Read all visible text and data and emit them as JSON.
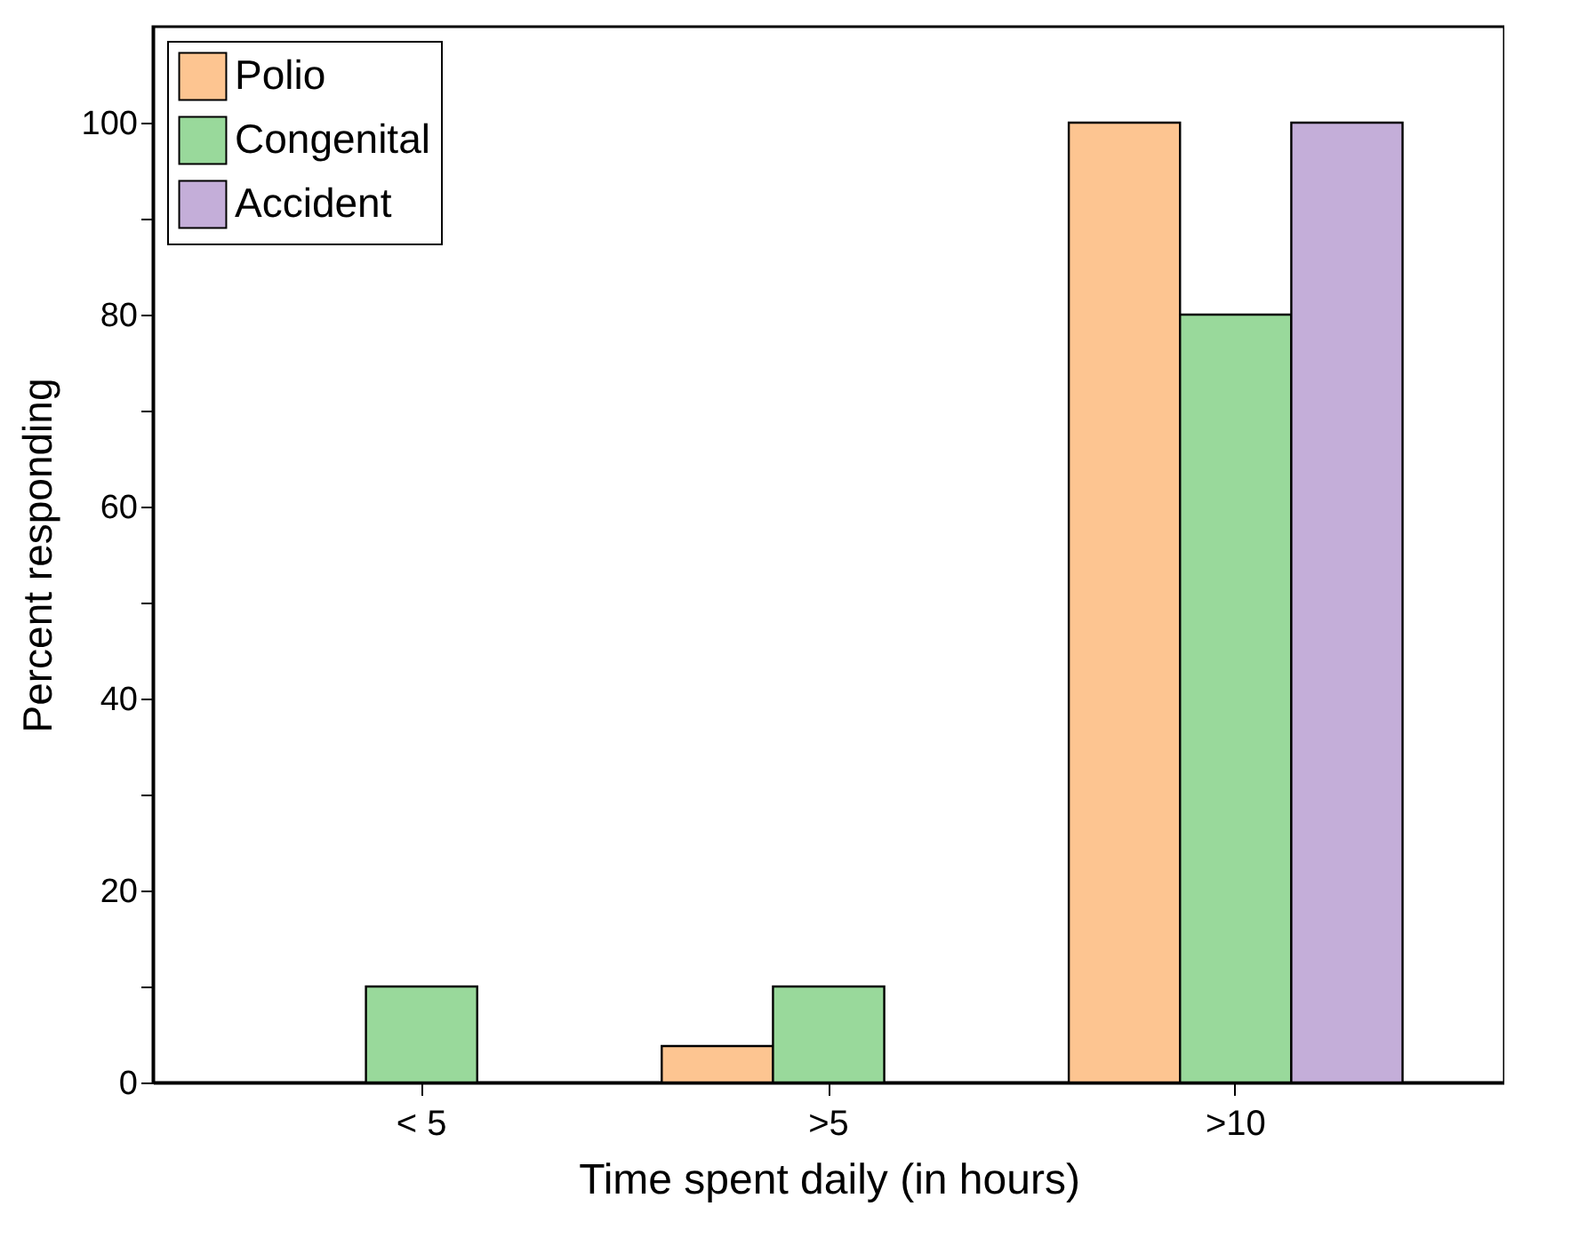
{
  "chart_data": {
    "type": "bar",
    "xlabel": "Time spent daily (in hours)",
    "ylabel": "Percent responding",
    "categories": [
      "< 5",
      ">5",
      ">10"
    ],
    "series": [
      {
        "name": "Polio",
        "color": "#fdc591",
        "values": [
          null,
          3.8,
          100
        ]
      },
      {
        "name": "Congenital",
        "color": "#99d99b",
        "values": [
          10,
          10,
          80
        ]
      },
      {
        "name": "Accident",
        "color": "#c4aed9",
        "values": [
          null,
          null,
          100
        ]
      }
    ],
    "ylim": [
      0,
      110
    ],
    "yticks": [
      0,
      {
        "value": 10,
        "label": null
      },
      20,
      {
        "value": 30,
        "label": null
      },
      40,
      {
        "value": 50,
        "label": null
      },
      60,
      {
        "value": 70,
        "label": null
      },
      80,
      {
        "value": 90,
        "label": null
      },
      100
    ],
    "grid": false,
    "legend": "top left"
  }
}
